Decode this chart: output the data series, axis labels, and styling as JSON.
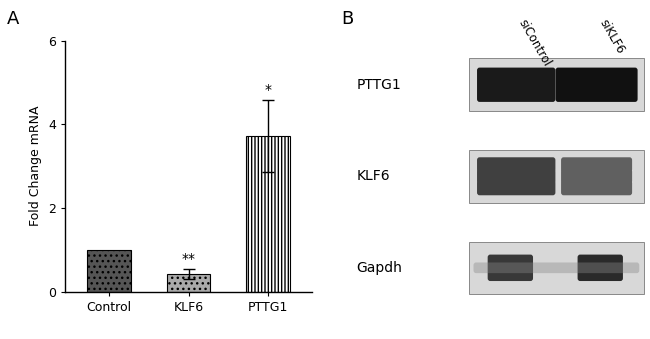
{
  "panel_a_label": "A",
  "panel_b_label": "B",
  "bar_categories": [
    "Control",
    "KLF6",
    "PTTG1"
  ],
  "bar_values": [
    1.0,
    0.42,
    3.72
  ],
  "bar_errors": [
    0.0,
    0.12,
    0.85
  ],
  "ylabel": "Fold Change mRNA",
  "ylim": [
    0,
    6
  ],
  "yticks": [
    0,
    2,
    4,
    6
  ],
  "significance": [
    "none",
    "**",
    "*"
  ],
  "wb_labels": [
    "PTTG1",
    "KLF6",
    "Gapdh"
  ],
  "wb_col_labels": [
    "siControl",
    "siKLF6"
  ],
  "background_color": "#ffffff",
  "bar_edge_color": "#000000",
  "text_color": "#000000",
  "bar_width": 0.55,
  "fontsize_labels": 9,
  "fontsize_ticks": 9,
  "fontsize_panel": 13,
  "fontsize_wb": 10
}
